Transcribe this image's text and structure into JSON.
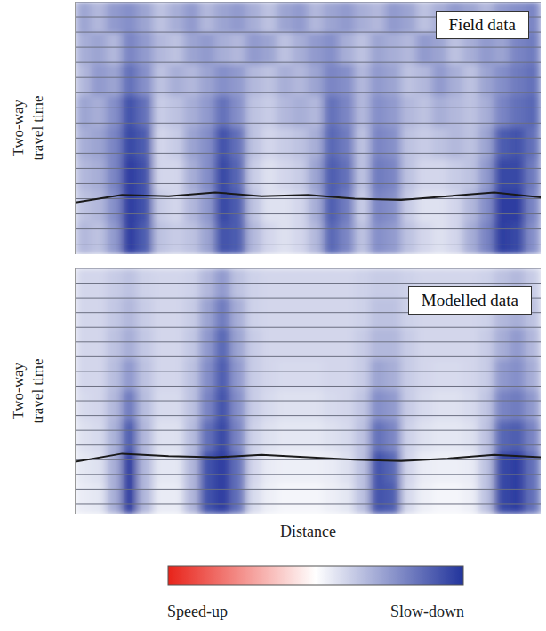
{
  "chart_data": [
    {
      "type": "heatmap",
      "title": "Field data",
      "ylabel": "Two-way travel time",
      "xlim": [
        0,
        100
      ],
      "ylim": [
        0,
        100
      ],
      "yticks": [
        0,
        6,
        12,
        18,
        24,
        30,
        36,
        42,
        48,
        54,
        60,
        66,
        72,
        78,
        84,
        90,
        96
      ],
      "grid": true,
      "tick_labels": false,
      "cells": [
        [
          0.45,
          0.35,
          0.5,
          0.55,
          0.45,
          0.3,
          0.4,
          0.5,
          0.35,
          0.45,
          0.5,
          0.4,
          0.3,
          0.45,
          0.5,
          0.35,
          0.45,
          0.5,
          0.4,
          0.35,
          0.5,
          0.45,
          0.3,
          0.4,
          0.5,
          0.45,
          0.35,
          0.5,
          0.55,
          0.6
        ],
        [
          0.4,
          0.45,
          0.35,
          0.6,
          0.5,
          0.35,
          0.3,
          0.45,
          0.5,
          0.4,
          0.35,
          0.5,
          0.45,
          0.3,
          0.4,
          0.5,
          0.55,
          0.4,
          0.3,
          0.45,
          0.4,
          0.35,
          0.5,
          0.45,
          0.3,
          0.4,
          0.5,
          0.45,
          0.6,
          0.65
        ],
        [
          0.35,
          0.5,
          0.45,
          0.7,
          0.55,
          0.3,
          0.4,
          0.35,
          0.45,
          0.55,
          0.5,
          0.35,
          0.3,
          0.4,
          0.35,
          0.45,
          0.6,
          0.55,
          0.35,
          0.5,
          0.45,
          0.3,
          0.35,
          0.5,
          0.4,
          0.3,
          0.45,
          0.55,
          0.65,
          0.7
        ],
        [
          0.45,
          0.4,
          0.55,
          0.85,
          0.7,
          0.25,
          0.3,
          0.4,
          0.5,
          0.7,
          0.55,
          0.3,
          0.25,
          0.35,
          0.4,
          0.35,
          0.7,
          0.6,
          0.35,
          0.55,
          0.5,
          0.35,
          0.3,
          0.4,
          0.35,
          0.3,
          0.4,
          0.6,
          0.7,
          0.75
        ],
        [
          0.4,
          0.45,
          0.6,
          0.9,
          0.8,
          0.2,
          0.25,
          0.45,
          0.55,
          0.85,
          0.7,
          0.3,
          0.2,
          0.25,
          0.3,
          0.4,
          0.75,
          0.65,
          0.3,
          0.6,
          0.55,
          0.3,
          0.25,
          0.3,
          0.35,
          0.3,
          0.45,
          0.8,
          0.85,
          0.7
        ],
        [
          0.35,
          0.4,
          0.6,
          0.95,
          0.85,
          0.2,
          0.2,
          0.4,
          0.55,
          0.9,
          0.75,
          0.25,
          0.15,
          0.2,
          0.25,
          0.45,
          0.8,
          0.7,
          0.3,
          0.65,
          0.6,
          0.3,
          0.2,
          0.2,
          0.25,
          0.3,
          0.5,
          0.9,
          0.9,
          0.65
        ],
        [
          0.3,
          0.35,
          0.55,
          0.95,
          0.85,
          0.25,
          0.2,
          0.35,
          0.5,
          0.9,
          0.8,
          0.3,
          0.15,
          0.15,
          0.2,
          0.4,
          0.8,
          0.65,
          0.25,
          0.6,
          0.55,
          0.25,
          0.15,
          0.15,
          0.2,
          0.35,
          0.55,
          0.95,
          0.95,
          0.6
        ],
        [
          0.35,
          0.3,
          0.5,
          0.95,
          0.8,
          0.3,
          0.25,
          0.3,
          0.45,
          0.85,
          0.8,
          0.35,
          0.2,
          0.15,
          0.2,
          0.35,
          0.75,
          0.6,
          0.3,
          0.55,
          0.5,
          0.3,
          0.2,
          0.15,
          0.2,
          0.4,
          0.6,
          0.95,
          0.9,
          0.55
        ]
      ],
      "horizon": {
        "x": [
          0,
          10,
          20,
          30,
          40,
          50,
          60,
          70,
          80,
          90,
          100
        ],
        "y": [
          79.5,
          76.5,
          77,
          75.5,
          77,
          76.5,
          78,
          78.5,
          77,
          75.5,
          77.5
        ],
        "color": "#1a1a1a"
      }
    },
    {
      "type": "heatmap",
      "title": "Modelled data",
      "ylabel": "Two-way travel time",
      "xlabel": "Distance",
      "xlim": [
        0,
        100
      ],
      "ylim": [
        0,
        100
      ],
      "yticks": [
        0,
        6,
        12,
        18,
        24,
        30,
        36,
        42,
        48,
        54,
        60,
        66,
        72,
        78,
        84,
        90,
        96
      ],
      "grid": true,
      "tick_labels": false,
      "cells": [
        [
          0.2,
          0.2,
          0.25,
          0.3,
          0.22,
          0.2,
          0.2,
          0.22,
          0.35,
          0.5,
          0.3,
          0.22,
          0.2,
          0.2,
          0.2,
          0.2,
          0.2,
          0.2,
          0.22,
          0.25,
          0.25,
          0.22,
          0.2,
          0.2,
          0.2,
          0.2,
          0.22,
          0.3,
          0.35,
          0.25
        ],
        [
          0.2,
          0.2,
          0.27,
          0.35,
          0.25,
          0.2,
          0.2,
          0.25,
          0.45,
          0.65,
          0.4,
          0.22,
          0.2,
          0.2,
          0.2,
          0.2,
          0.2,
          0.2,
          0.22,
          0.3,
          0.3,
          0.22,
          0.2,
          0.2,
          0.2,
          0.2,
          0.22,
          0.35,
          0.4,
          0.3
        ],
        [
          0.2,
          0.2,
          0.3,
          0.4,
          0.27,
          0.2,
          0.2,
          0.27,
          0.5,
          0.75,
          0.45,
          0.25,
          0.2,
          0.2,
          0.2,
          0.2,
          0.2,
          0.2,
          0.25,
          0.35,
          0.35,
          0.25,
          0.2,
          0.2,
          0.2,
          0.2,
          0.25,
          0.4,
          0.5,
          0.35
        ],
        [
          0.2,
          0.2,
          0.32,
          0.5,
          0.3,
          0.2,
          0.2,
          0.3,
          0.55,
          0.8,
          0.5,
          0.25,
          0.2,
          0.18,
          0.18,
          0.18,
          0.2,
          0.2,
          0.25,
          0.45,
          0.4,
          0.25,
          0.2,
          0.18,
          0.18,
          0.2,
          0.25,
          0.5,
          0.55,
          0.4
        ],
        [
          0.18,
          0.2,
          0.35,
          0.65,
          0.32,
          0.18,
          0.18,
          0.3,
          0.6,
          0.85,
          0.55,
          0.25,
          0.18,
          0.15,
          0.15,
          0.15,
          0.18,
          0.2,
          0.28,
          0.55,
          0.5,
          0.25,
          0.18,
          0.15,
          0.15,
          0.18,
          0.28,
          0.6,
          0.65,
          0.5
        ],
        [
          0.15,
          0.18,
          0.38,
          0.8,
          0.35,
          0.15,
          0.15,
          0.32,
          0.7,
          0.9,
          0.6,
          0.22,
          0.15,
          0.12,
          0.12,
          0.12,
          0.15,
          0.18,
          0.3,
          0.7,
          0.6,
          0.22,
          0.15,
          0.12,
          0.12,
          0.15,
          0.3,
          0.75,
          0.8,
          0.6
        ],
        [
          0.12,
          0.15,
          0.4,
          0.95,
          0.35,
          0.12,
          0.12,
          0.35,
          0.85,
          0.95,
          0.7,
          0.2,
          0.1,
          0.08,
          0.08,
          0.08,
          0.1,
          0.15,
          0.3,
          0.85,
          0.75,
          0.2,
          0.1,
          0.08,
          0.08,
          0.1,
          0.3,
          0.9,
          0.95,
          0.7
        ],
        [
          0.1,
          0.12,
          0.4,
          0.95,
          0.35,
          0.1,
          0.1,
          0.35,
          0.85,
          0.95,
          0.7,
          0.18,
          0.08,
          0.05,
          0.05,
          0.05,
          0.08,
          0.12,
          0.3,
          0.85,
          0.8,
          0.18,
          0.08,
          0.05,
          0.05,
          0.08,
          0.3,
          0.9,
          0.95,
          0.7
        ]
      ],
      "horizon": {
        "x": [
          0,
          10,
          20,
          30,
          40,
          50,
          60,
          70,
          80,
          90,
          100
        ],
        "y": [
          78.8,
          75.5,
          76.5,
          77,
          76,
          77,
          78,
          78.5,
          77.5,
          76,
          77
        ],
        "color": "#1a1a1a"
      }
    }
  ],
  "colorbar": {
    "range": [
      -1,
      1
    ],
    "colors": [
      "#e8231a",
      "#ffffff",
      "#22349c"
    ],
    "labels": [
      "Speed-up",
      "Slow-down"
    ]
  }
}
